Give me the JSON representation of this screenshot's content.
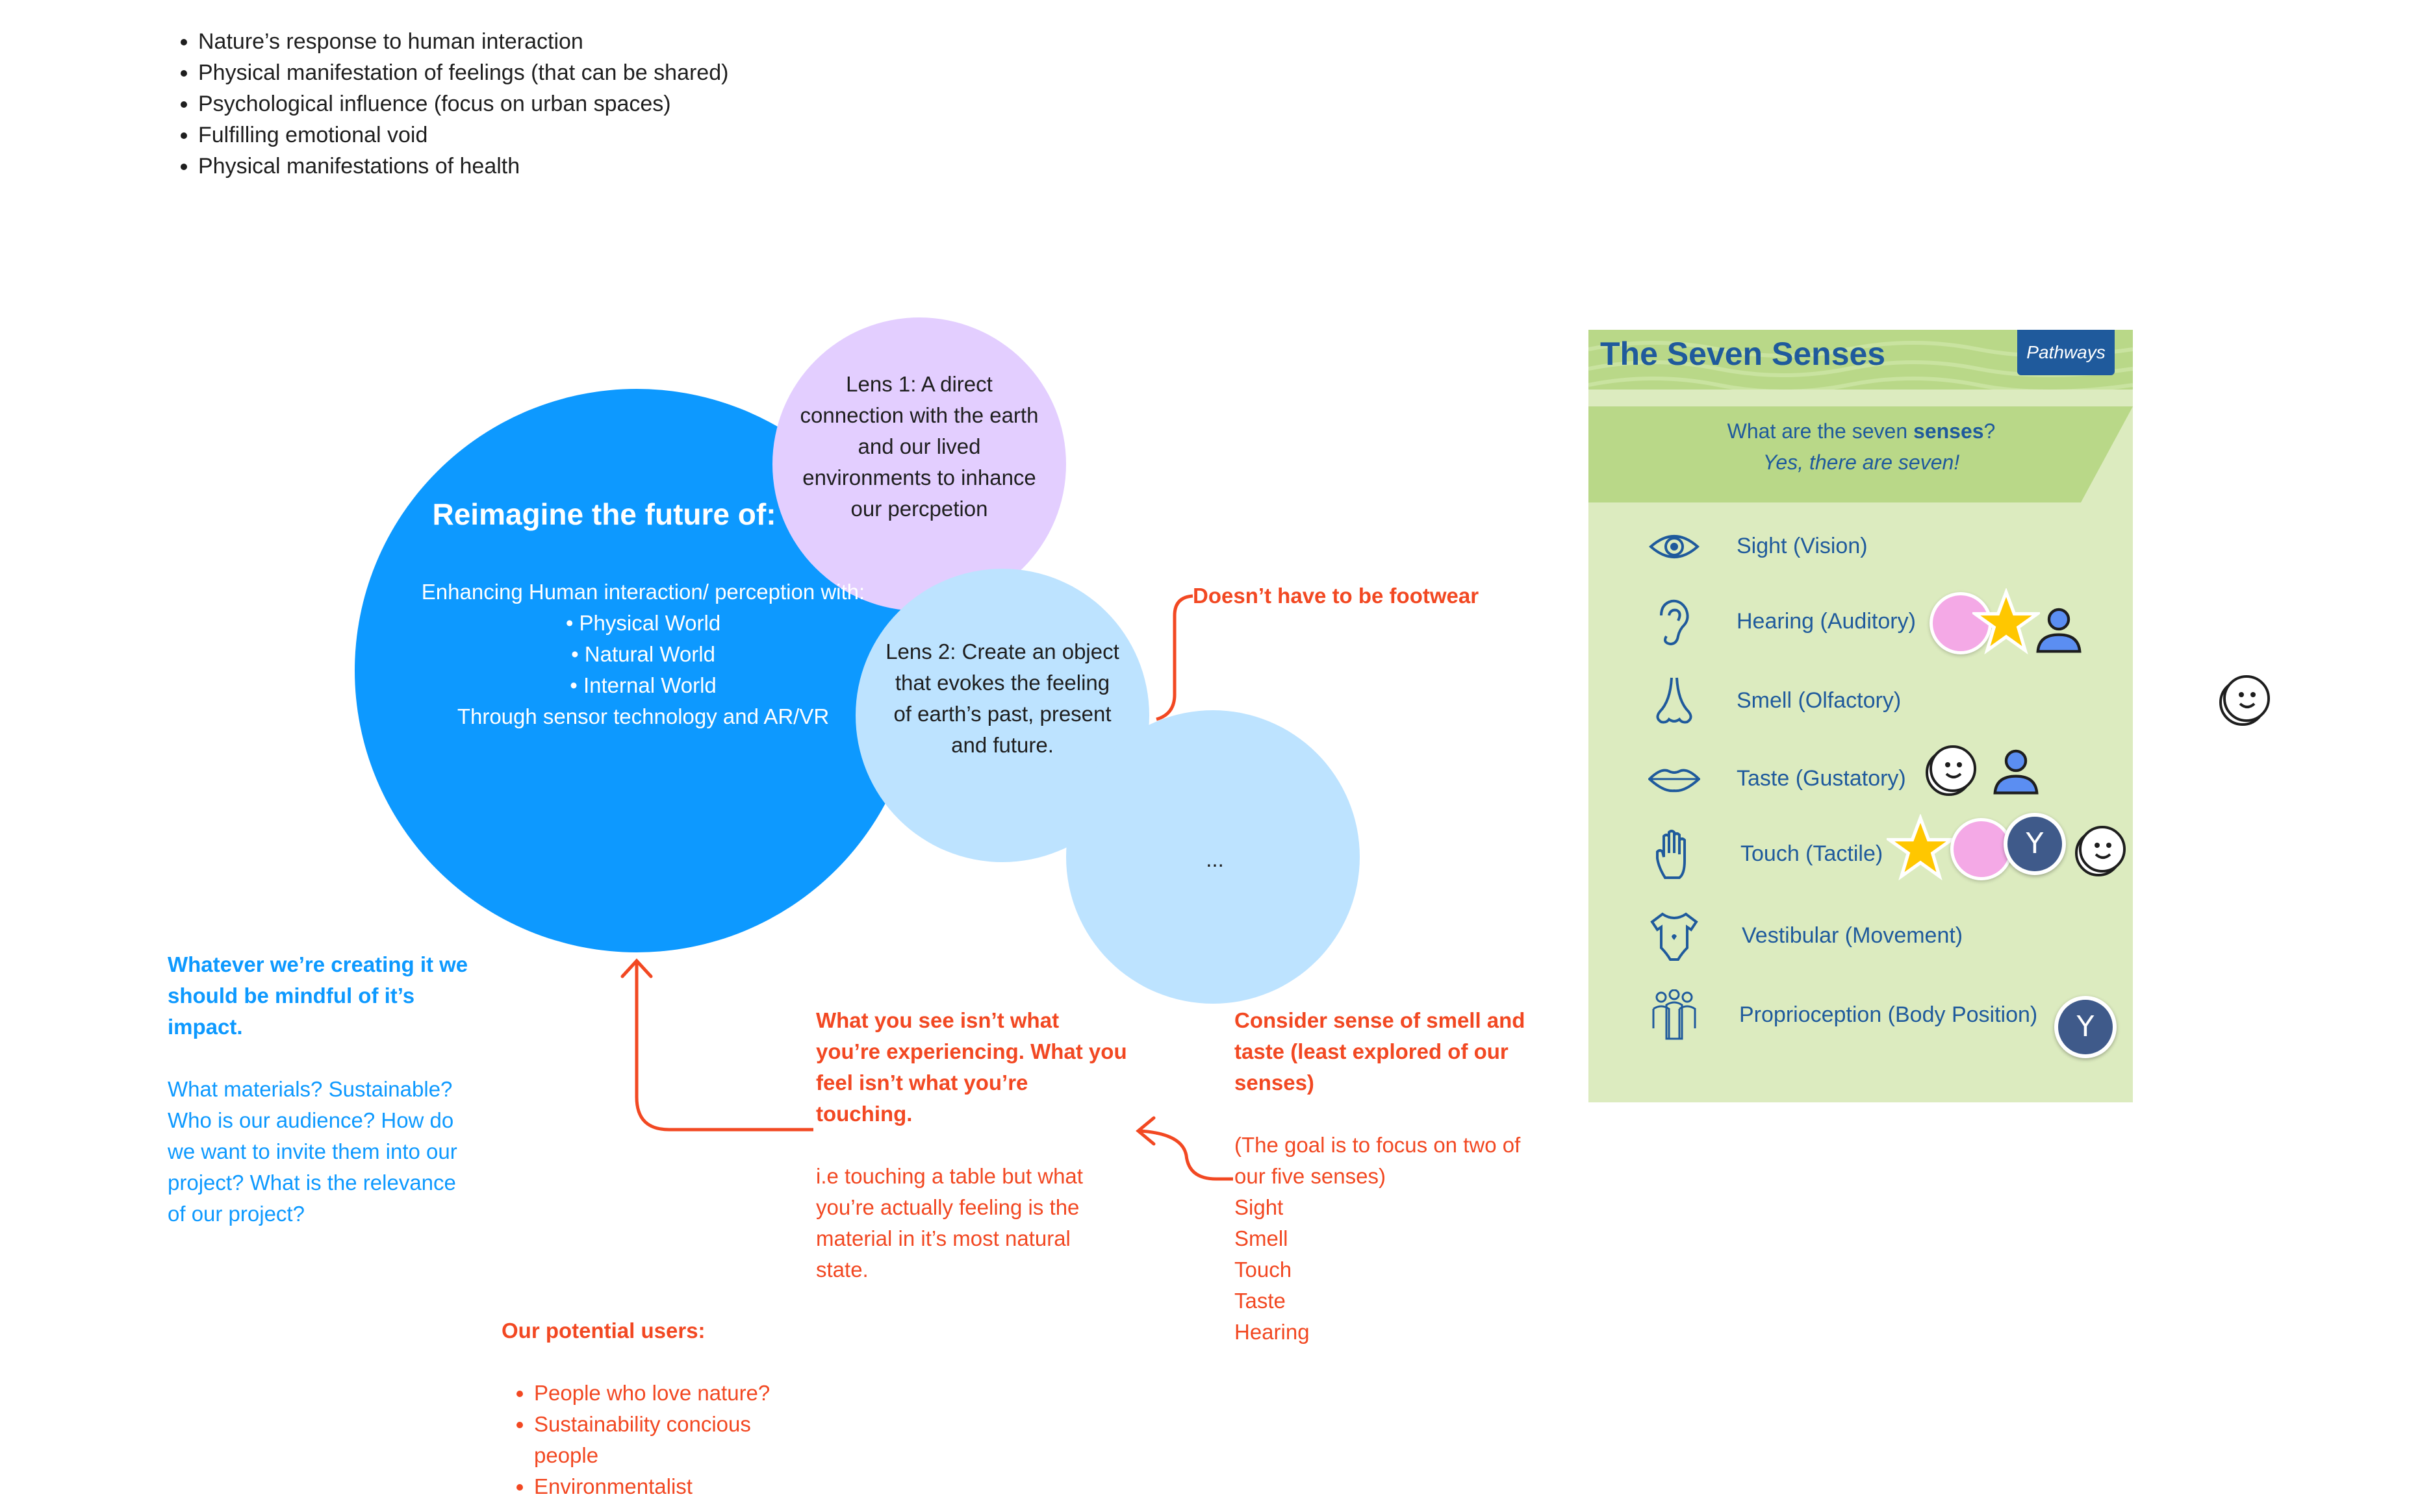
{
  "top_list": [
    "Nature’s response to human interaction",
    "Physical manifestation of feelings (that can be shared)",
    "Psychological  influence (focus on urban spaces)",
    "Fulfilling emotional void",
    "Physical manifestations of health"
  ],
  "main_circle": {
    "title": "Reimagine the future of:",
    "intro": "Enhancing Human interaction/ perception with:",
    "items": [
      "Physical World",
      "Natural World",
      "Internal World"
    ],
    "outro": "Through sensor technology and AR/VR"
  },
  "lens1": "Lens 1: A direct connection with the earth and our lived environments to inhance our percpetion",
  "lens2": "Lens 2: Create an object that evokes the feeling of earth’s past, present and future.",
  "lens3": "...",
  "notes": {
    "footwear": "Doesn’t have to be footwear",
    "mindful_title": "Whatever we’re creating it we should be mindful of it’s impact.",
    "mindful_body": "What materials? Sustainable? Who is our audience? How do we want to invite them into our project? What is the relevance of our project?",
    "see_title": "What you see isn’t what you’re experiencing. What you feel isn’t what you’re touching.",
    "see_body": "i.e touching a table but what you’re actually feeling is the material in it’s most natural state.",
    "smell_title": "Consider sense of smell and taste (least explored of our senses)",
    "smell_body": "(The goal is to focus on two of our five senses)",
    "smell_list": [
      "Sight",
      "Smell",
      "Touch",
      "Taste",
      "Hearing"
    ],
    "users_title": "Our potential users:",
    "users_list": [
      "People who love nature?",
      "Sustainability concious people",
      "Environmentalist"
    ]
  },
  "senses_card": {
    "title": "The Seven Senses",
    "logo": "Pathways",
    "question_a": "What are the seven ",
    "question_b": "senses",
    "question_c": "?",
    "answer": "Yes, there are seven!",
    "senses": [
      {
        "label": "Sight (Vision)",
        "icon": "eye-icon"
      },
      {
        "label": "Hearing (Auditory)",
        "icon": "ear-icon"
      },
      {
        "label": "Smell (Olfactory)",
        "icon": "nose-icon"
      },
      {
        "label": "Taste (Gustatory)",
        "icon": "lips-icon"
      },
      {
        "label": "Touch (Tactile)",
        "icon": "hand-icon"
      },
      {
        "label": "Vestibular (Movement)",
        "icon": "onesie-icon"
      },
      {
        "label": "Proprioception (Body Position)",
        "icon": "people-icon"
      }
    ]
  },
  "avatar_letter": "Y",
  "colors": {
    "blue": "#0d99ff",
    "purple": "#e3ceff",
    "light_blue": "#bde3ff",
    "red": "#f24822",
    "card_bg": "#dcebbf",
    "card_header": "#b9d888",
    "card_text": "#1f5a9c"
  }
}
